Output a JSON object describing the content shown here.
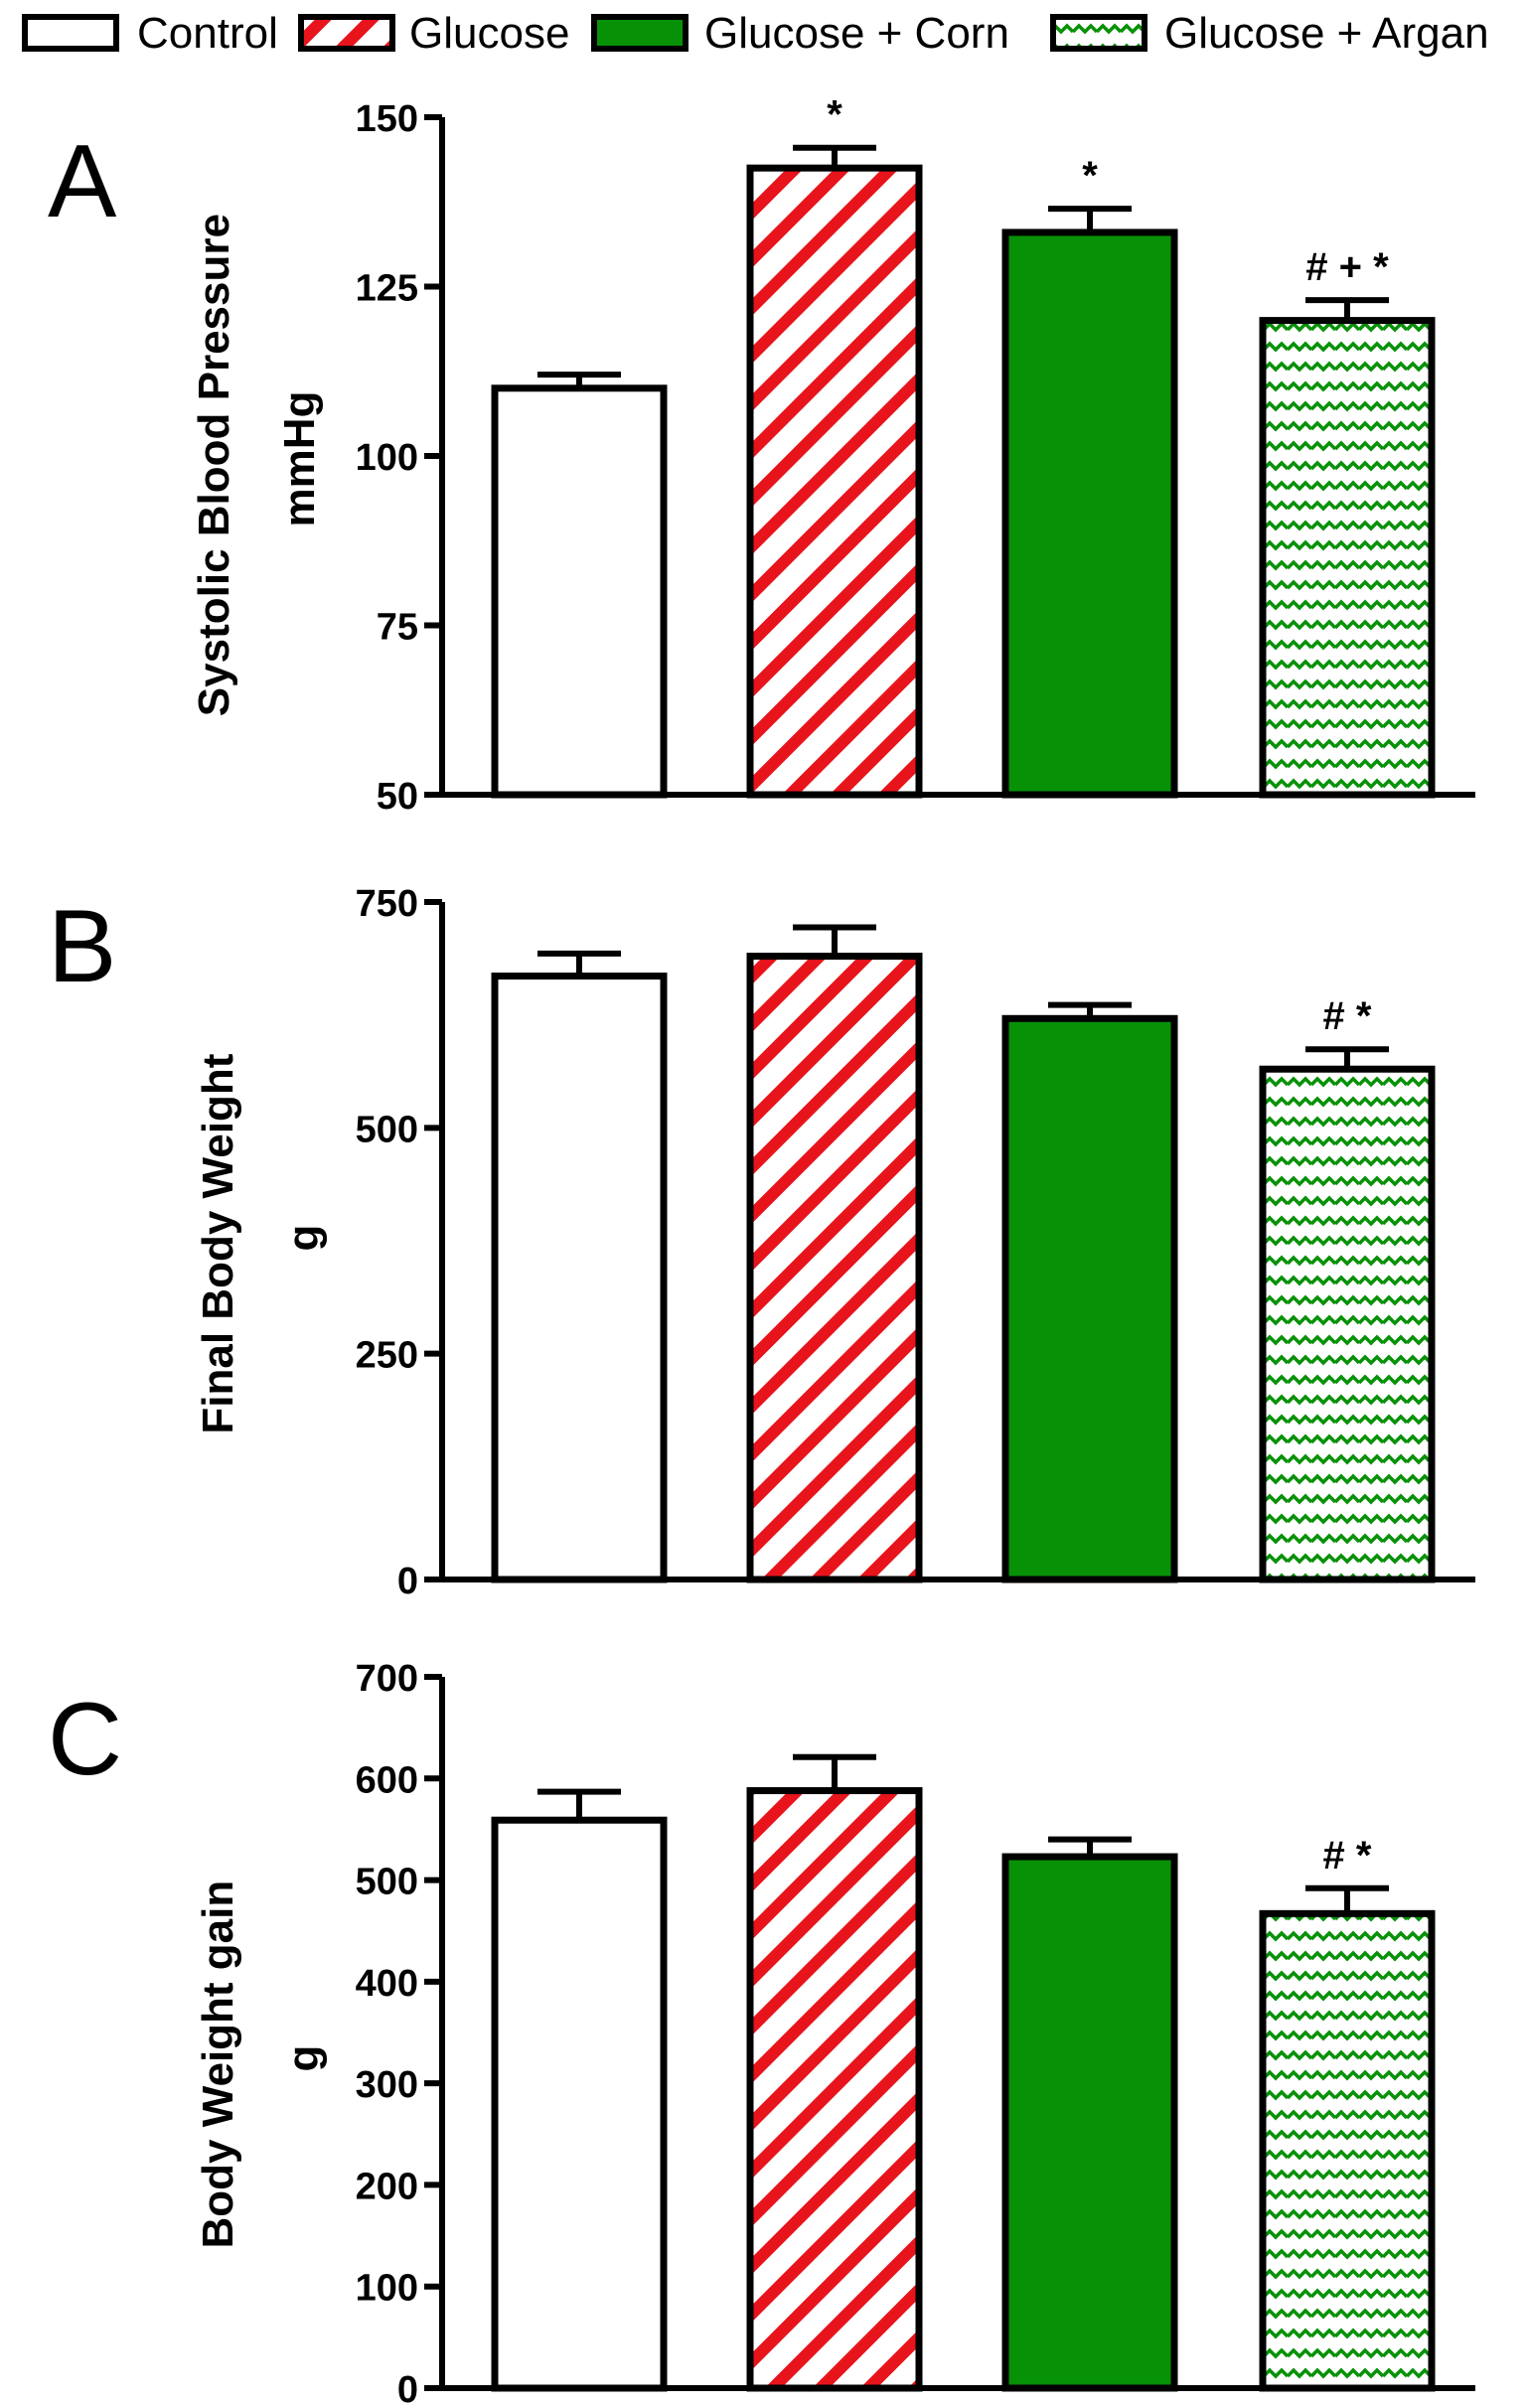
{
  "legend": [
    {
      "label": "Control",
      "pattern": "white"
    },
    {
      "label": "Glucose",
      "pattern": "red-diagonal"
    },
    {
      "label": "Glucose + Corn",
      "pattern": "green-solid"
    },
    {
      "label": "Glucose + Argan",
      "pattern": "green-wave"
    }
  ],
  "colors": {
    "red": "#e8141c",
    "green": "#079107",
    "outline": "#000000"
  },
  "chart_data": [
    {
      "type": "bar",
      "panel_label": "A",
      "ylabel": [
        "Systolic Blood Pressure",
        "mmHg"
      ],
      "categories": [
        "Control",
        "Glucose",
        "Glucose + Corn",
        "Glucose + Argan"
      ],
      "values": [
        110,
        142.5,
        133,
        120
      ],
      "errors": [
        2,
        3,
        3.5,
        3
      ],
      "annotations": [
        "",
        "*",
        "*",
        "# + *"
      ],
      "ylim": [
        50,
        150
      ],
      "yticks": [
        "50",
        "75",
        "100",
        "125",
        "150"
      ],
      "grid": false
    },
    {
      "type": "bar",
      "panel_label": "B",
      "ylabel": [
        "Final Body Weight",
        "g"
      ],
      "categories": [
        "Control",
        "Glucose",
        "Glucose + Corn",
        "Glucose + Argan"
      ],
      "values": [
        668,
        690,
        621,
        565
      ],
      "errors": [
        25,
        32,
        15,
        22
      ],
      "annotations": [
        "",
        "",
        "",
        "# *"
      ],
      "ylim": [
        0,
        750
      ],
      "yticks": [
        "0",
        "250",
        "500",
        "750"
      ],
      "grid": false
    },
    {
      "type": "bar",
      "panel_label": "C",
      "ylabel": [
        "Body Weight gain",
        "g"
      ],
      "categories": [
        "Control",
        "Glucose",
        "Glucose + Corn",
        "Glucose + Argan"
      ],
      "values": [
        559,
        588,
        523,
        467
      ],
      "errors": [
        28,
        33,
        17,
        25
      ],
      "annotations": [
        "",
        "",
        "",
        "# *"
      ],
      "ylim": [
        0,
        700
      ],
      "yticks": [
        "0",
        "100",
        "200",
        "300",
        "400",
        "500",
        "600",
        "700"
      ],
      "grid": false
    }
  ]
}
